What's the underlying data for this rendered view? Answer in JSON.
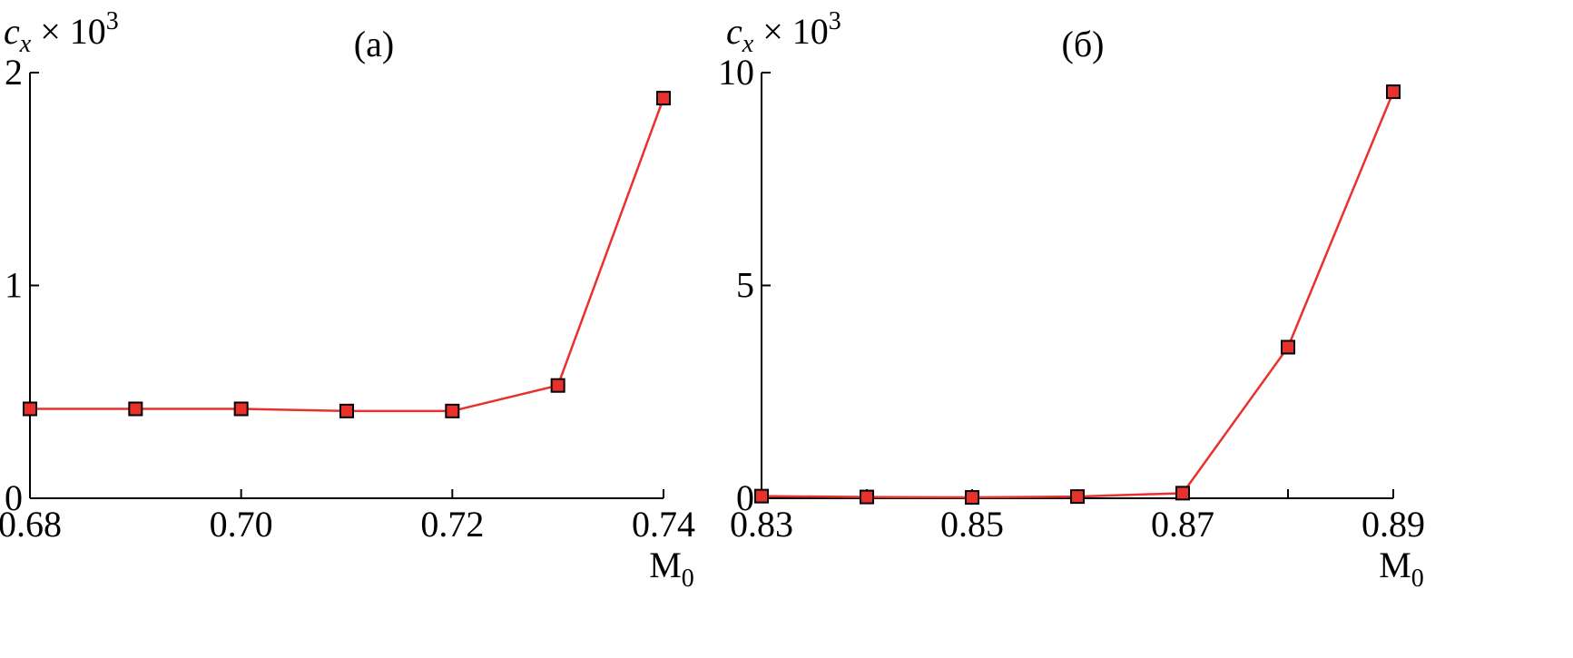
{
  "chart_data": [
    {
      "type": "line",
      "panel_label": "(a)",
      "ylabel_var": "c",
      "ylabel_sub": "x",
      "ylabel_rest": " × 10",
      "ylabel_sup": "3",
      "xlabel_main": "M",
      "xlabel_sub": "0",
      "xlim": [
        0.68,
        0.74
      ],
      "ylim": [
        0,
        2
      ],
      "xticks": [
        0.68,
        0.7,
        0.72,
        0.74
      ],
      "xtick_labels": [
        "0.68",
        "0.70",
        "0.72",
        "0.74"
      ],
      "yticks": [
        0,
        1,
        2
      ],
      "ytick_labels": [
        "0",
        "1",
        "2"
      ],
      "x": [
        0.68,
        0.69,
        0.7,
        0.71,
        0.72,
        0.73,
        0.74
      ],
      "series": [
        {
          "values": [
            0.42,
            0.42,
            0.42,
            0.41,
            0.41,
            0.53,
            1.88
          ],
          "color": "#e8302c",
          "marker": "square"
        }
      ],
      "grid": false
    },
    {
      "type": "line",
      "panel_label": "(б)",
      "ylabel_var": "c",
      "ylabel_sub": "x",
      "ylabel_rest": " × 10",
      "ylabel_sup": "3",
      "xlabel_main": "M",
      "xlabel_sub": "0",
      "xlim": [
        0.83,
        0.89
      ],
      "ylim": [
        0,
        10
      ],
      "xticks": [
        0.83,
        0.84,
        0.85,
        0.86,
        0.87,
        0.88,
        0.89
      ],
      "xtick_labels": [
        "0.83",
        "",
        "0.85",
        "",
        "0.87",
        "",
        "0.89"
      ],
      "yticks": [
        0,
        5,
        10
      ],
      "ytick_labels": [
        "0",
        "5",
        "10"
      ],
      "x": [
        0.83,
        0.84,
        0.85,
        0.86,
        0.87,
        0.88,
        0.89
      ],
      "series": [
        {
          "values": [
            0.05,
            0.03,
            0.02,
            0.04,
            0.12,
            3.55,
            9.55
          ],
          "color": "#e8302c",
          "marker": "square"
        }
      ],
      "grid": false
    }
  ]
}
